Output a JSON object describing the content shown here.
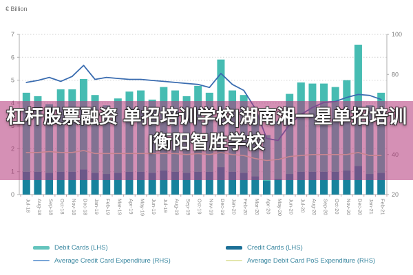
{
  "overlay": {
    "line1": "杠杆股票融资 单招培训学校|湖南湘一星单招培训",
    "line2": "|衡阳智胜学校"
  },
  "legend": {
    "items": [
      {
        "label": "Debit Cards (LHS)",
        "swatch": "bar",
        "color": "#64c4bd"
      },
      {
        "label": "Average Credit Card Expenditure (RHS)",
        "swatch": "line",
        "color": "#7aa6d8"
      },
      {
        "label": "Credit Cards (LHS)",
        "swatch": "bar",
        "color": "#1b6f96"
      },
      {
        "label": "Average Debit Card PoS Expenditure (RHS)",
        "swatch": "line",
        "color": "#e3e6ad"
      }
    ]
  },
  "chart_data": {
    "type": "bar",
    "subtype": "stacked-bars-with-two-lines",
    "title": "",
    "left_axis": {
      "label": "€ Billion",
      "min": 0,
      "max": 7,
      "ticks": [
        "7",
        "6",
        "5",
        "4",
        "3",
        "2",
        "1",
        "0"
      ],
      "tick_values": [
        7,
        6,
        5,
        4,
        3,
        2,
        1,
        0
      ]
    },
    "right_axis": {
      "min": 20,
      "max": 100,
      "ticks": [
        "100",
        "80",
        "60",
        "40",
        "20"
      ],
      "tick_values": [
        100,
        80,
        60,
        40,
        20
      ]
    },
    "grid": "dotted-horizontal",
    "legend_position": "bottom",
    "categories": [
      "Jul-18",
      "Aug-18",
      "Sep-18",
      "Oct-18",
      "Nov-18",
      "Dec-18",
      "Jan-19",
      "Feb-19",
      "Mar-19",
      "Apr-19",
      "May-19",
      "Jun-19",
      "Jul-19",
      "Aug-19",
      "Sep-19",
      "Oct-19",
      "Nov-19",
      "Dec-19",
      "Jan-20",
      "Feb-20",
      "Mar-20",
      "Apr-20",
      "May-20",
      "Jun-20",
      "Jul-20",
      "Aug-20",
      "Sep-20",
      "Oct-20",
      "Nov-20",
      "Dec-20",
      "Jan-21",
      "Feb-21"
    ],
    "series": [
      {
        "name": "Credit Cards (LHS)",
        "type": "bar",
        "stack": "cards",
        "axis": "left",
        "color": "#17839d",
        "values": [
          1.0,
          1.0,
          0.95,
          1.0,
          1.0,
          1.1,
          0.95,
          0.9,
          0.95,
          1.0,
          1.0,
          0.95,
          1.05,
          1.0,
          0.95,
          1.0,
          1.0,
          1.2,
          1.0,
          0.95,
          0.8,
          0.6,
          0.7,
          0.9,
          1.0,
          1.0,
          1.0,
          1.0,
          1.05,
          1.25,
          0.9,
          0.95
        ]
      },
      {
        "name": "Debit Cards (LHS)",
        "type": "bar",
        "stack": "cards",
        "axis": "left",
        "color": "#46bcb2",
        "values": [
          3.45,
          3.3,
          3.0,
          3.6,
          3.6,
          3.95,
          3.4,
          3.0,
          3.25,
          3.5,
          3.55,
          3.2,
          3.65,
          3.55,
          3.35,
          3.75,
          3.45,
          4.7,
          3.55,
          3.4,
          2.7,
          2.0,
          2.5,
          3.5,
          3.9,
          3.85,
          3.85,
          3.7,
          3.95,
          5.3,
          3.0,
          3.5
        ]
      },
      {
        "name": "Average Credit Card Expenditure (RHS)",
        "type": "line",
        "axis": "right",
        "color": "#3a6cb0",
        "values": [
          76,
          77,
          78.5,
          76.5,
          79,
          84.5,
          77.5,
          78.5,
          78,
          77.5,
          77.5,
          77,
          76.5,
          76,
          75.5,
          75,
          73.5,
          80.5,
          75,
          72,
          63,
          48,
          47,
          55,
          60,
          63.5,
          66,
          66.5,
          68.5,
          70,
          69.5,
          67.5
        ]
      },
      {
        "name": "Average Debit Card PoS Expenditure (RHS)",
        "type": "line",
        "axis": "right",
        "color": "#e4e6ae",
        "values": [
          41,
          41,
          41.5,
          41,
          41,
          42,
          40.5,
          40.5,
          40.5,
          40.5,
          40.5,
          40.5,
          40.5,
          40.5,
          40,
          40.5,
          40,
          41,
          40,
          39.5,
          38,
          37,
          37.5,
          39,
          39.5,
          40,
          40,
          40,
          40,
          41,
          39.5,
          39.5
        ]
      }
    ]
  }
}
